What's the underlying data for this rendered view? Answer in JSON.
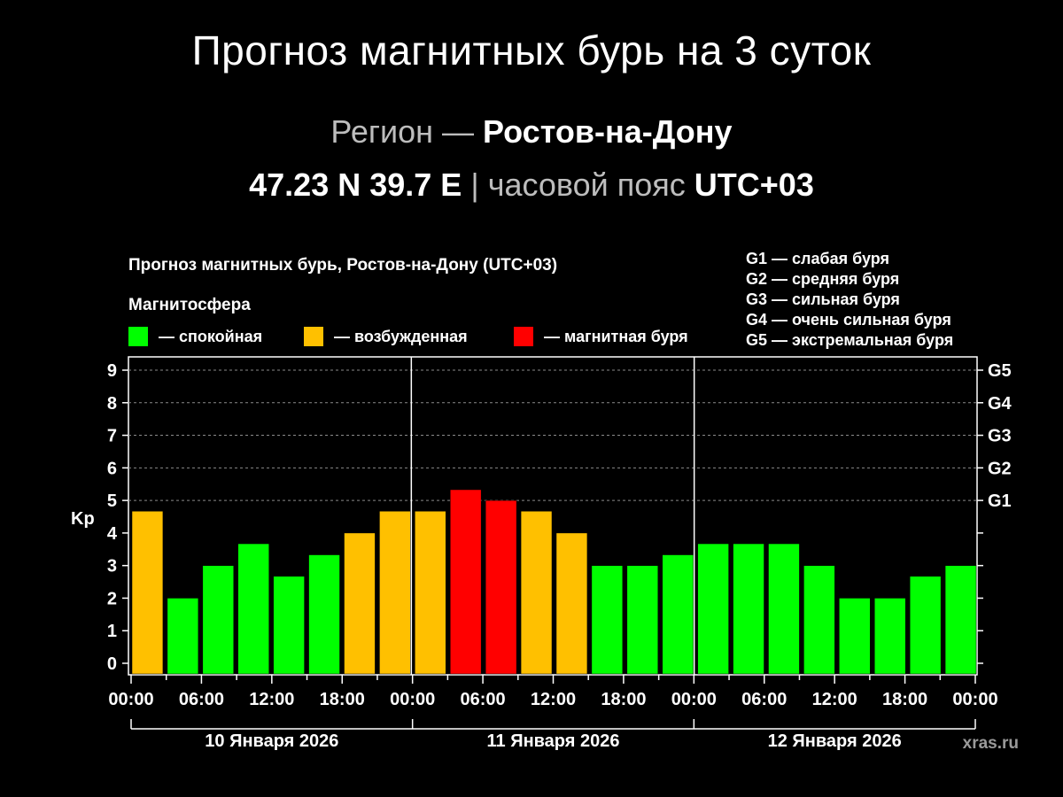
{
  "header": {
    "title": "Прогноз магнитных бурь на 3 суток",
    "region_prefix": "Регион",
    "region_dash": "—",
    "region_name": "Ростов-на-Дону",
    "coords": "47.23 N 39.7 E",
    "separator": "|",
    "tz_label": "часовой пояс",
    "tz_value": "UTC+03"
  },
  "chart_data": {
    "type": "bar",
    "title": "Прогноз магнитных бурь, Ростов-на-Дону (UTC+03)",
    "ylabel": "Kp",
    "ylim": [
      0,
      9
    ],
    "yticks": [
      "0",
      "1",
      "2",
      "3",
      "4",
      "5",
      "6",
      "7",
      "8",
      "9"
    ],
    "storm_levels": [
      {
        "label": "G1",
        "kp": 5
      },
      {
        "label": "G2",
        "kp": 6
      },
      {
        "label": "G3",
        "kp": 7
      },
      {
        "label": "G4",
        "kp": 8
      },
      {
        "label": "G5",
        "kp": 9
      }
    ],
    "storm_legend": [
      "G1 — слабая буря",
      "G2 — средняя буря",
      "G3 — сильная буря",
      "G4 — очень сильная буря",
      "G5 — экстремальная буря"
    ],
    "legend_title": "Магнитосфера",
    "legend": [
      {
        "key": "calm",
        "label": "— спокойная",
        "color": "#00ff00"
      },
      {
        "key": "excited",
        "label": "— возбужденная",
        "color": "#ffc000"
      },
      {
        "key": "storm",
        "label": "— магнитная буря",
        "color": "#ff0000"
      }
    ],
    "xtick_labels": [
      "00:00",
      "06:00",
      "12:00",
      "18:00",
      "00:00",
      "06:00",
      "12:00",
      "18:00",
      "00:00",
      "06:00",
      "12:00",
      "18:00",
      "00:00"
    ],
    "days": [
      "10 Января 2026",
      "11 Января 2026",
      "12 Января 2026"
    ],
    "values": [
      4.67,
      2.0,
      3.0,
      3.67,
      2.67,
      3.33,
      4.0,
      4.67,
      4.67,
      5.33,
      5.0,
      4.67,
      4.0,
      3.0,
      3.0,
      3.33,
      3.67,
      3.67,
      3.67,
      3.0,
      2.0,
      2.0,
      2.67,
      3.0
    ],
    "states": [
      "excited",
      "calm",
      "calm",
      "calm",
      "calm",
      "calm",
      "excited",
      "excited",
      "excited",
      "storm",
      "storm",
      "excited",
      "excited",
      "calm",
      "calm",
      "calm",
      "calm",
      "calm",
      "calm",
      "calm",
      "calm",
      "calm",
      "calm",
      "calm"
    ],
    "grid": true
  },
  "watermark": "xras.ru"
}
